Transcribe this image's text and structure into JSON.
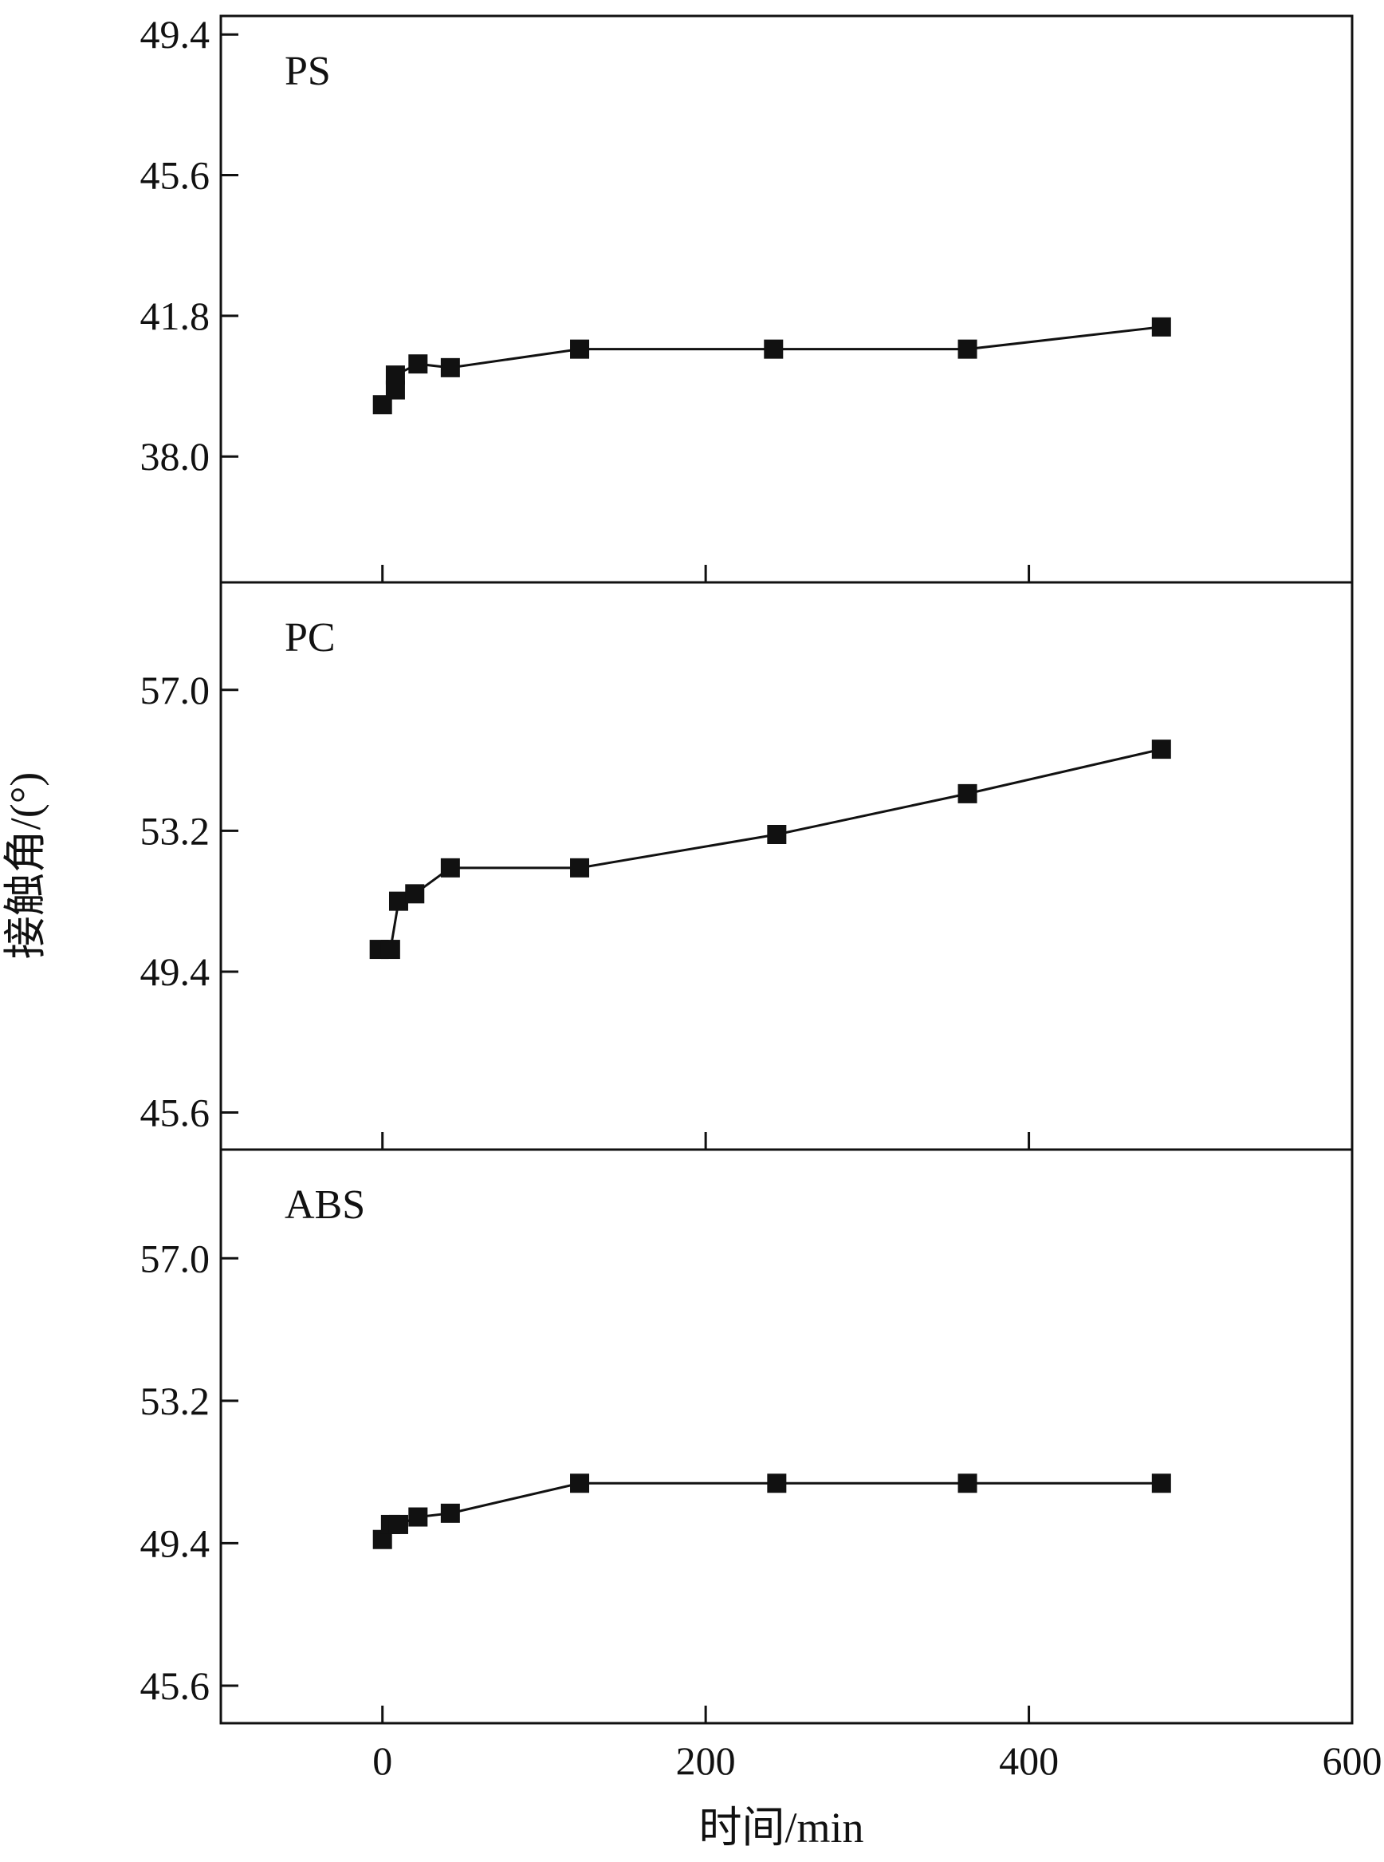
{
  "colors": {
    "line": "#111111",
    "marker": "#111111",
    "background": "#ffffff"
  },
  "xlabel": "时间/min",
  "ylabel": "接触角/(°)",
  "x_ticks": [
    0,
    200,
    400,
    600
  ],
  "chart_data": [
    {
      "type": "line",
      "panel_label": "PS",
      "xlim": [
        -100,
        600
      ],
      "ylim": [
        34.6,
        49.9
      ],
      "y_ticks": [
        "38.0",
        "41.8",
        "45.6",
        "49.4"
      ],
      "series": [
        {
          "x": [
            0,
            8,
            8,
            22,
            42,
            122,
            242,
            362,
            482
          ],
          "y": [
            39.4,
            39.8,
            40.2,
            40.5,
            40.4,
            40.9,
            40.9,
            40.9,
            41.5
          ]
        }
      ]
    },
    {
      "type": "line",
      "panel_label": "PC",
      "xlim": [
        -100,
        600
      ],
      "ylim": [
        44.6,
        59.9
      ],
      "y_ticks": [
        "45.6",
        "49.4",
        "53.2",
        "57.0"
      ],
      "series": [
        {
          "x": [
            -2,
            5,
            10,
            20,
            42,
            122,
            244,
            362,
            482
          ],
          "y": [
            50.0,
            50.0,
            51.3,
            51.5,
            52.2,
            52.2,
            53.1,
            54.2,
            55.4
          ]
        }
      ]
    },
    {
      "type": "line",
      "panel_label": "ABS",
      "xlim": [
        -100,
        600
      ],
      "ylim": [
        44.6,
        59.9
      ],
      "y_ticks": [
        "45.6",
        "49.4",
        "53.2",
        "57.0"
      ],
      "series": [
        {
          "x": [
            0,
            5,
            10,
            22,
            42,
            122,
            244,
            362,
            482
          ],
          "y": [
            49.5,
            49.9,
            49.9,
            50.1,
            50.2,
            51.0,
            51.0,
            51.0,
            51.0
          ]
        }
      ]
    }
  ]
}
